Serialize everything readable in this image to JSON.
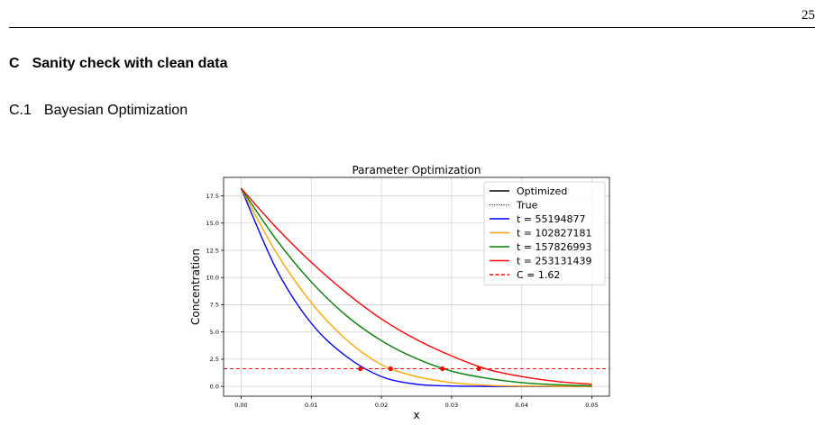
{
  "page": {
    "number": "25",
    "section_number": "C",
    "section_title": "Sanity check with clean data",
    "subsection_number": "C.1",
    "subsection_title": "Bayesian Optimization"
  },
  "chart_data": {
    "type": "line",
    "title": "Parameter Optimization",
    "xlabel": "x",
    "ylabel": "Concentration",
    "xlim": [
      -0.0025,
      0.0525
    ],
    "ylim": [
      -0.9,
      19.2
    ],
    "xticks": [
      "0.00",
      "0.01",
      "0.02",
      "0.03",
      "0.04",
      "0.05"
    ],
    "yticks": [
      "0.0",
      "2.5",
      "5.0",
      "7.5",
      "10.0",
      "12.5",
      "15.0",
      "17.5"
    ],
    "grid": true,
    "legend_position": "top-right",
    "legend": [
      {
        "label": "Optimized",
        "color": "#000000",
        "style": "solid"
      },
      {
        "label": "True",
        "color": "#000000",
        "style": "dotted"
      },
      {
        "label": "t = 55194877",
        "color": "#0000ff",
        "style": "solid"
      },
      {
        "label": "t = 102827181",
        "color": "#ffa500",
        "style": "solid"
      },
      {
        "label": "t = 157826993",
        "color": "#008000",
        "style": "solid"
      },
      {
        "label": "t = 253131439",
        "color": "#ff0000",
        "style": "solid"
      },
      {
        "label": "C = 1.62",
        "color": "#ff0000",
        "style": "dashed"
      }
    ],
    "initial_value": 18.2,
    "threshold": 1.62,
    "series": [
      {
        "name": "t = 55194877",
        "color": "#0000ff",
        "front": 0.017,
        "x": [
          0,
          0.005,
          0.01,
          0.015,
          0.02,
          0.025,
          0.03,
          0.035,
          0.04,
          0.045,
          0.05
        ],
        "y": [
          18.2,
          10.8,
          5.8,
          2.75,
          0.9,
          0.2,
          0.04,
          0.0,
          0.0,
          0.0,
          0.0
        ]
      },
      {
        "name": "t = 102827181",
        "color": "#ffa500",
        "front": 0.0213,
        "x": [
          0,
          0.005,
          0.01,
          0.015,
          0.02,
          0.025,
          0.03,
          0.035,
          0.04,
          0.045,
          0.05
        ],
        "y": [
          18.2,
          12.3,
          7.7,
          4.3,
          2.0,
          0.9,
          0.35,
          0.1,
          0.03,
          0.01,
          0.0
        ]
      },
      {
        "name": "t = 157826993",
        "color": "#008000",
        "front": 0.0287,
        "x": [
          0,
          0.005,
          0.01,
          0.015,
          0.02,
          0.025,
          0.03,
          0.035,
          0.04,
          0.045,
          0.05
        ],
        "y": [
          18.2,
          13.5,
          9.6,
          6.5,
          4.2,
          2.55,
          1.4,
          0.75,
          0.35,
          0.15,
          0.05
        ]
      },
      {
        "name": "t = 253131439",
        "color": "#ff0000",
        "front": 0.0339,
        "x": [
          0,
          0.005,
          0.01,
          0.015,
          0.02,
          0.025,
          0.03,
          0.035,
          0.04,
          0.045,
          0.05
        ],
        "y": [
          18.2,
          14.6,
          11.4,
          8.6,
          6.2,
          4.3,
          2.8,
          1.6,
          0.9,
          0.45,
          0.2
        ]
      }
    ]
  }
}
